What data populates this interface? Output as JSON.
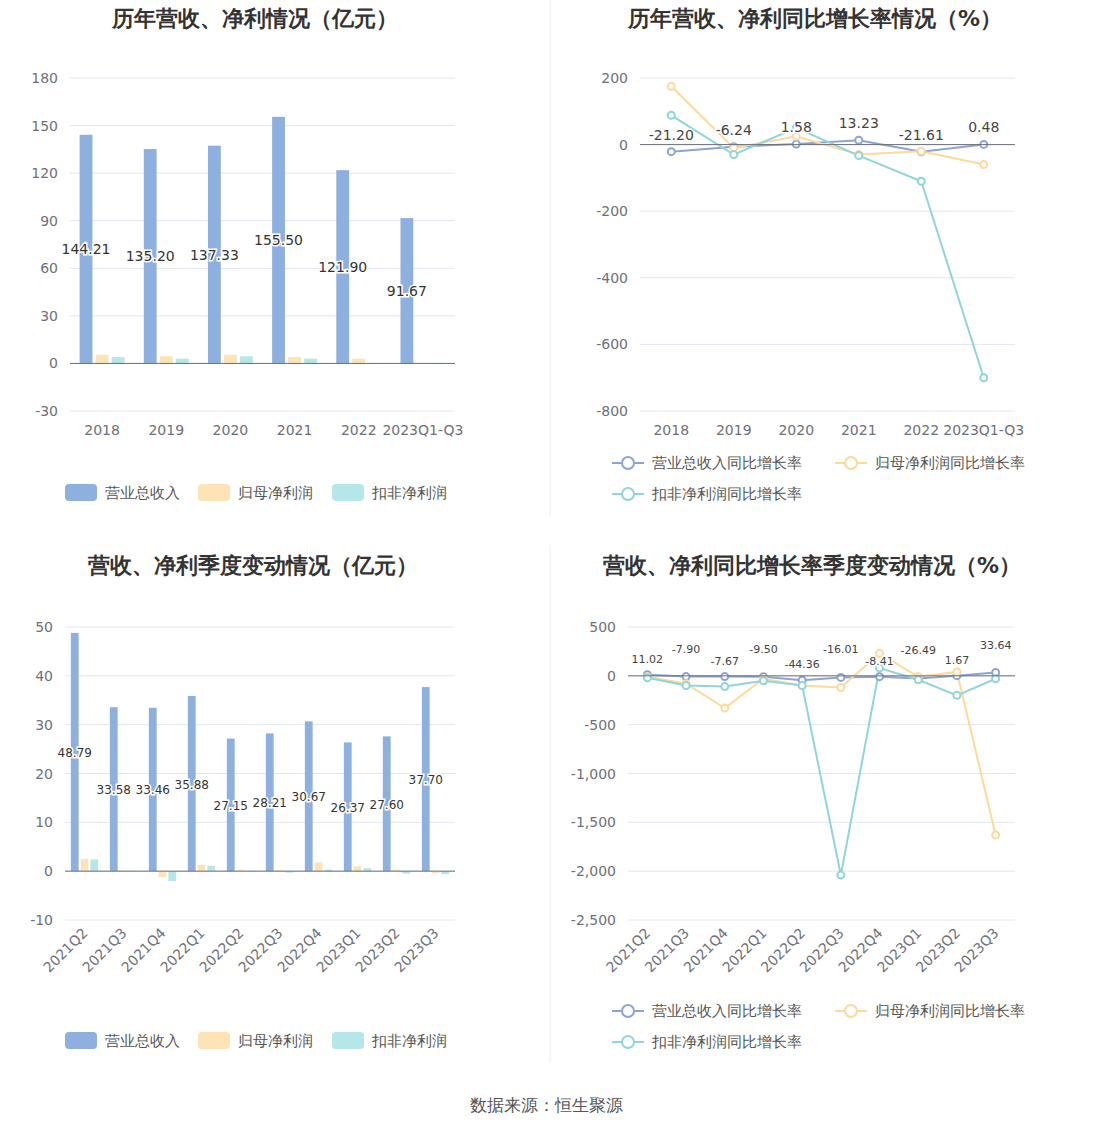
{
  "source": "数据来源：恒生聚源",
  "chart_data": [
    {
      "type": "bar",
      "title": "历年营收、净利情况（亿元）",
      "categories": [
        "2018",
        "2019",
        "2020",
        "2021",
        "2022",
        "2023Q1-Q3"
      ],
      "ylim": [
        -30,
        180
      ],
      "yticks": [
        -30,
        0,
        30,
        60,
        90,
        120,
        150,
        180
      ],
      "grid": true,
      "legend": "bottom",
      "series": [
        {
          "name": "营业总收入",
          "color": "#8eb0de",
          "data_labels": true,
          "values": [
            144.21,
            135.2,
            137.33,
            155.5,
            121.9,
            91.67
          ],
          "value_labels": [
            "144.21",
            "135.20",
            "137.33",
            "155.50",
            "121.90",
            "91.67"
          ]
        },
        {
          "name": "归母净利润",
          "color": "#fde3b5",
          "values": [
            5.5,
            4.5,
            5.5,
            4.0,
            3.0,
            0.3
          ]
        },
        {
          "name": "扣非净利润",
          "color": "#b5e6e8",
          "values": [
            4.0,
            3.0,
            4.5,
            3.0,
            0.2,
            -0.5
          ]
        }
      ]
    },
    {
      "type": "line",
      "title": "历年营收、净利同比增长率情况（%）",
      "categories": [
        "2018",
        "2019",
        "2020",
        "2021",
        "2022",
        "2023Q1-Q3"
      ],
      "ylim": [
        -800,
        200
      ],
      "yticks": [
        -800,
        -600,
        -400,
        -200,
        0,
        200
      ],
      "grid": true,
      "legend": "bottom",
      "series": [
        {
          "name": "营业总收入同比增长率",
          "color": "#8ca4d4",
          "marker": "circle",
          "data_labels": true,
          "values": [
            -21.2,
            -6.24,
            1.58,
            13.23,
            -21.61,
            0.48
          ],
          "value_labels": [
            "-21.20",
            "-6.24",
            "1.58",
            "13.23",
            "-21.61",
            "0.48"
          ]
        },
        {
          "name": "归母净利润同比增长率",
          "color": "#fdd99b",
          "marker": "circle",
          "values": [
            175,
            -10,
            25,
            -30,
            -20,
            -60
          ]
        },
        {
          "name": "扣非净利润同比增长率",
          "color": "#8fd5da",
          "marker": "circle",
          "values": [
            88,
            -30,
            50,
            -33,
            -110,
            -700
          ]
        }
      ]
    },
    {
      "type": "bar",
      "title": "营收、净利季度变动情况（亿元）",
      "categories": [
        "2021Q2",
        "2021Q3",
        "2021Q4",
        "2022Q1",
        "2022Q2",
        "2022Q3",
        "2022Q4",
        "2023Q1",
        "2023Q2",
        "2023Q3"
      ],
      "ylim": [
        -10,
        50
      ],
      "yticks": [
        -10,
        0,
        10,
        20,
        30,
        40,
        50
      ],
      "grid": true,
      "legend": "bottom",
      "series": [
        {
          "name": "营业总收入",
          "color": "#8eb0de",
          "data_labels": true,
          "values": [
            48.79,
            33.58,
            33.46,
            35.88,
            27.15,
            28.21,
            30.67,
            26.37,
            27.6,
            37.7
          ],
          "value_labels": [
            "48.79",
            "33.58",
            "33.46",
            "35.88",
            "27.15",
            "28.21",
            "30.67",
            "26.37",
            "27.60",
            "37.70"
          ]
        },
        {
          "name": "归母净利润",
          "color": "#fde3b5",
          "values": [
            2.5,
            0.1,
            -1.2,
            1.3,
            0.3,
            0.2,
            1.8,
            1.0,
            0.3,
            -0.4
          ]
        },
        {
          "name": "扣非净利润",
          "color": "#b5e6e8",
          "values": [
            2.4,
            0.1,
            -2.0,
            1.1,
            0.1,
            -0.3,
            0.3,
            0.6,
            -0.5,
            -0.6
          ]
        }
      ]
    },
    {
      "type": "line",
      "title": "营收、净利同比增长率季度变动情况（%）",
      "categories": [
        "2021Q2",
        "2021Q3",
        "2021Q4",
        "2022Q1",
        "2022Q2",
        "2022Q3",
        "2022Q4",
        "2023Q1",
        "2023Q2",
        "2023Q3"
      ],
      "ylim": [
        -2500,
        500
      ],
      "yticks": [
        {
          "value": -2500,
          "label": "-2,500"
        },
        {
          "value": -2000,
          "label": "-2,000"
        },
        {
          "value": -1500,
          "label": "-1,500"
        },
        {
          "value": -1000,
          "label": "-1,000"
        },
        -500,
        0,
        500
      ],
      "grid": true,
      "legend": "bottom",
      "series": [
        {
          "name": "营业总收入同比增长率",
          "color": "#8ca4d4",
          "marker": "circle",
          "data_labels": true,
          "values": [
            11.02,
            -7.9,
            -7.67,
            -9.5,
            -44.36,
            -16.01,
            -8.41,
            -26.49,
            1.67,
            33.64
          ],
          "value_labels": [
            "11.02",
            "-7.90",
            "-7.67",
            "-9.50",
            "-44.36",
            "-16.01",
            "-8.41",
            "-26.49",
            "1.67",
            "33.64"
          ]
        },
        {
          "name": "归母净利润同比增长率",
          "color": "#fdd99b",
          "marker": "circle",
          "values": [
            -10,
            -80,
            -330,
            -30,
            -100,
            -120,
            230,
            -10,
            40,
            -1630
          ]
        },
        {
          "name": "扣非净利润同比增长率",
          "color": "#8fd5da",
          "marker": "circle",
          "values": [
            -20,
            -100,
            -110,
            -50,
            -100,
            -2040,
            80,
            -40,
            -200,
            -30
          ]
        }
      ]
    }
  ]
}
